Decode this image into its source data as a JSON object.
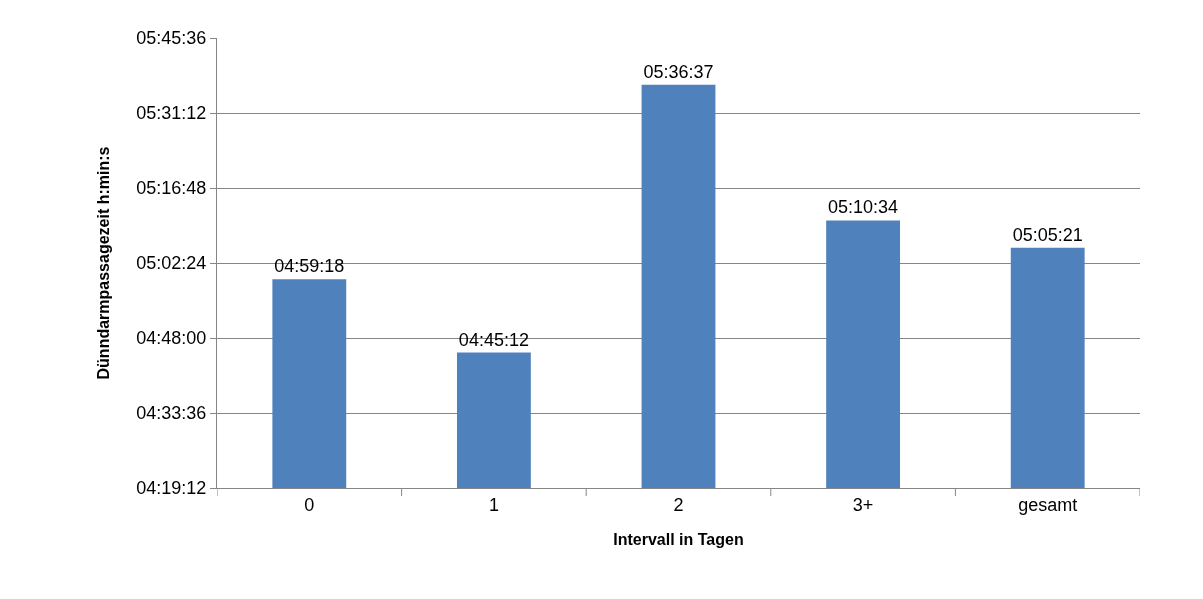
{
  "chart_data": {
    "type": "bar",
    "xlabel": "Intervall in Tagen",
    "ylabel": "Dünndarmpassagezeit h:min:s",
    "categories": [
      "0",
      "1",
      "2",
      "3+",
      "gesamt"
    ],
    "values": [
      4.98833,
      4.75333,
      5.61028,
      5.17611,
      5.08917
    ],
    "value_labels": [
      "04:59:18",
      "04:45:12",
      "05:36:37",
      "05:10:34",
      "05:05:21"
    ],
    "color": "#4f81bd",
    "ylim": [
      4.32,
      5.76
    ],
    "yticks": [
      {
        "value": 4.32,
        "label": "04:19:12"
      },
      {
        "value": 4.56,
        "label": "04:33:36"
      },
      {
        "value": 4.8,
        "label": "04:48:00"
      },
      {
        "value": 5.04,
        "label": "05:02:24"
      },
      {
        "value": 5.28,
        "label": "05:16:48"
      },
      {
        "value": 5.52,
        "label": "05:31:12"
      },
      {
        "value": 5.76,
        "label": "05:45:36"
      }
    ],
    "grid": "y",
    "legend": false
  }
}
